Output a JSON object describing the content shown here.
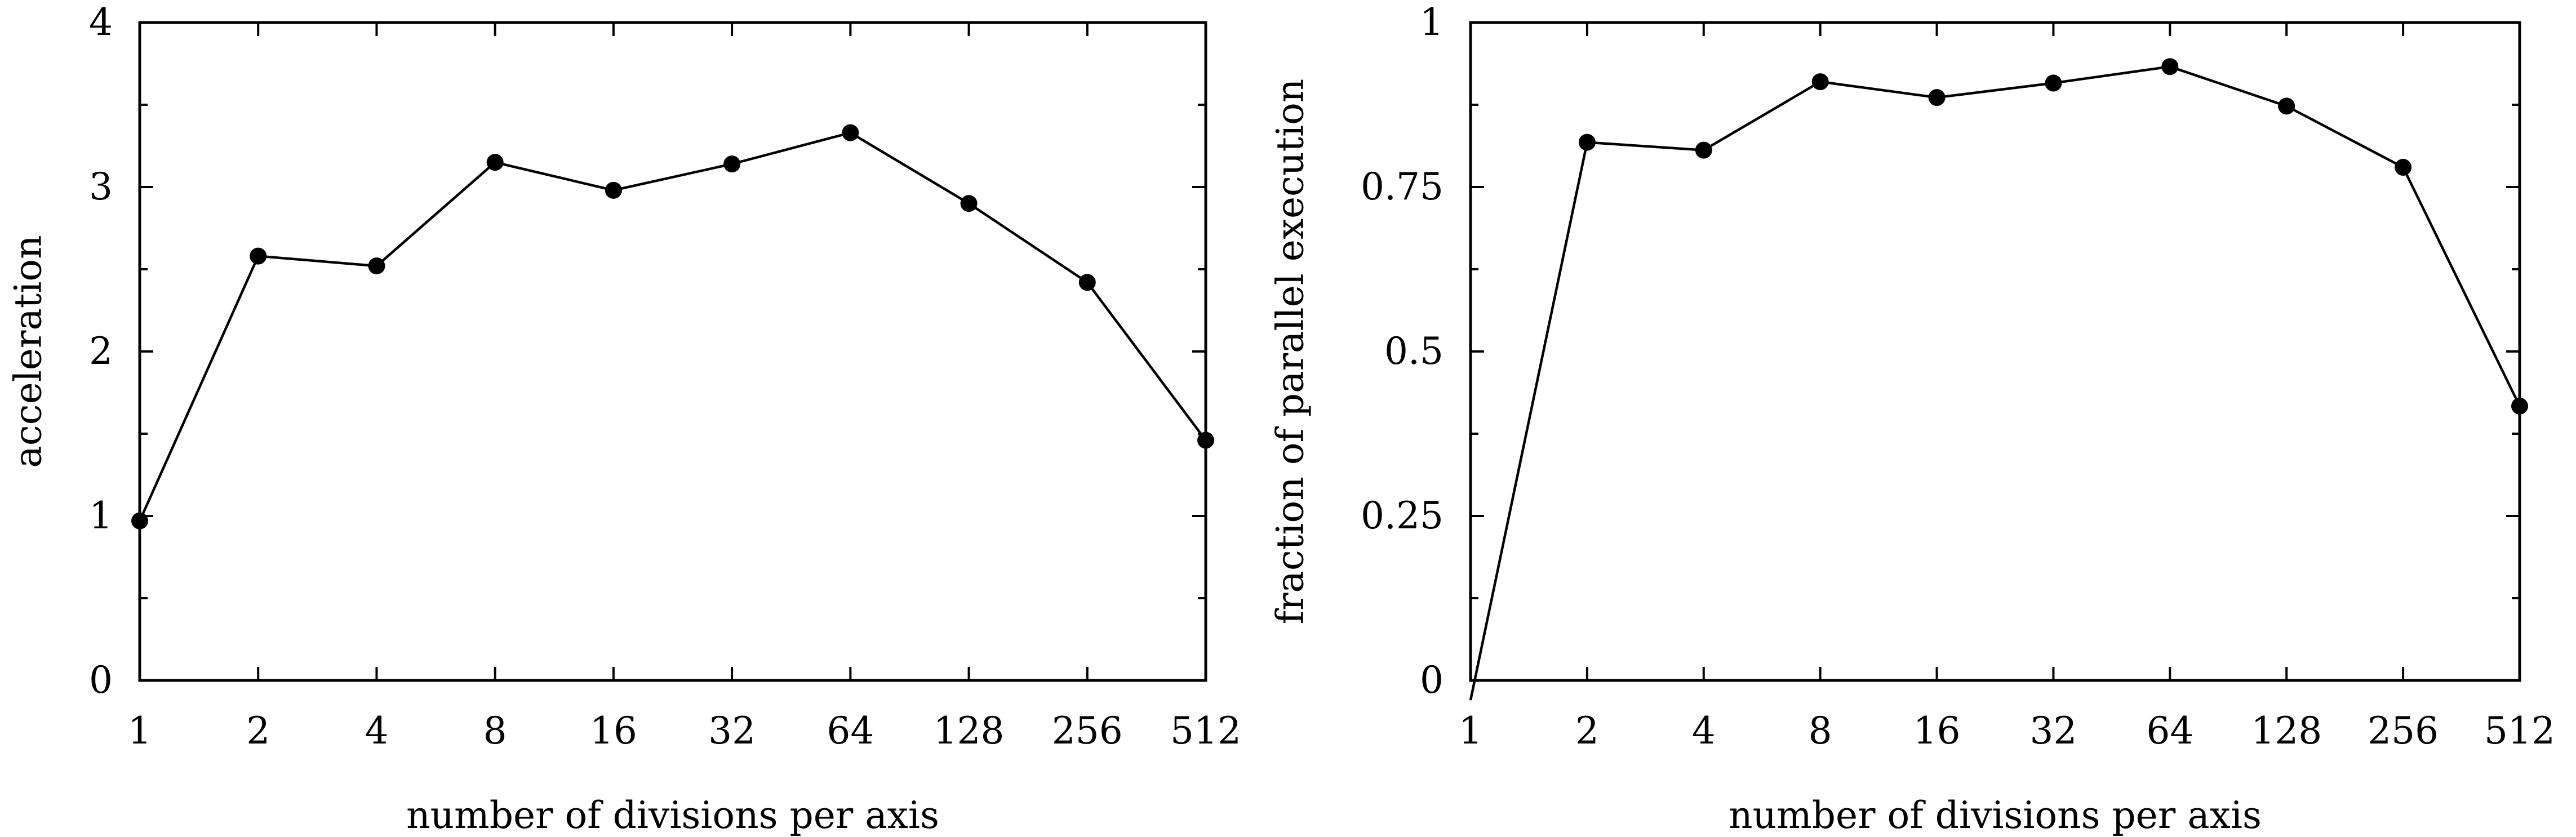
{
  "chart_data": [
    {
      "type": "line",
      "xlabel": "number of divisions per axis",
      "ylabel": "acceleration",
      "x_scale": "log2",
      "categories": [
        "1",
        "2",
        "4",
        "8",
        "16",
        "32",
        "64",
        "128",
        "256",
        "512"
      ],
      "x": [
        1,
        2,
        4,
        8,
        16,
        32,
        64,
        128,
        256,
        512
      ],
      "ylim": [
        0,
        4
      ],
      "yticks": [
        "0",
        "1",
        "2",
        "3",
        "4"
      ],
      "y_minor_ticks": true,
      "grid": false,
      "marker": "circle",
      "color": "#000000",
      "series": [
        {
          "values": [
            0.97,
            2.58,
            2.52,
            3.15,
            2.98,
            3.14,
            3.33,
            2.9,
            2.42,
            1.46
          ]
        }
      ]
    },
    {
      "type": "line",
      "xlabel": "number of divisions per axis",
      "ylabel": "fraction of parallel execution",
      "x_scale": "log2",
      "categories": [
        "1",
        "2",
        "4",
        "8",
        "16",
        "32",
        "64",
        "128",
        "256",
        "512"
      ],
      "x": [
        1,
        2,
        4,
        8,
        16,
        32,
        64,
        128,
        256,
        512
      ],
      "ylim": [
        0,
        1
      ],
      "yticks": [
        "0",
        "0.25",
        "0.5",
        "0.75",
        "1"
      ],
      "y_minor_ticks": true,
      "grid": false,
      "marker": "circle",
      "color": "#000000",
      "series": [
        {
          "values": [
            -0.03,
            0.818,
            0.806,
            0.91,
            0.886,
            0.908,
            0.933,
            0.873,
            0.78,
            0.417
          ]
        }
      ]
    }
  ]
}
